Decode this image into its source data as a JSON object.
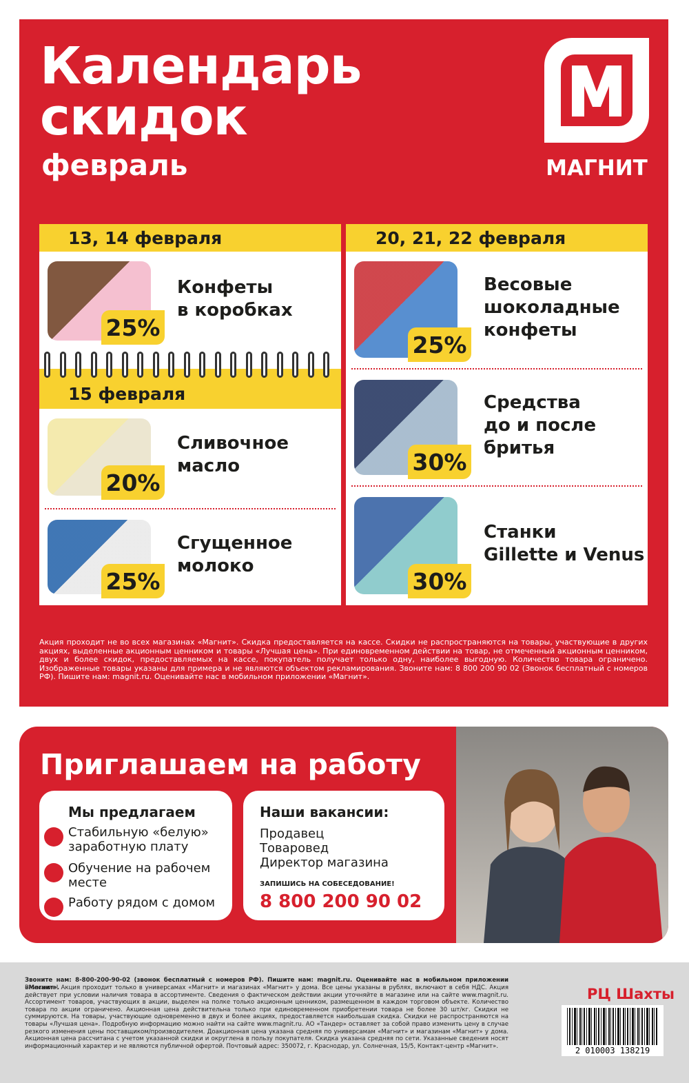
{
  "header": {
    "title_lines": [
      "Календарь",
      "скидок"
    ],
    "subtitle": "февраль",
    "brand": "МАГНИТ"
  },
  "calendar": {
    "left": [
      {
        "date": "13, 14 февраля",
        "items": [
          {
            "name_lines": [
              "Конфеты",
              "в коробках"
            ],
            "discount": "25%"
          }
        ]
      },
      {
        "date": "15 февраля",
        "items": [
          {
            "name_lines": [
              "Сливочное",
              "масло"
            ],
            "discount": "20%"
          },
          {
            "name_lines": [
              "Сгущенное",
              "молоко"
            ],
            "discount": "25%"
          }
        ]
      }
    ],
    "right": [
      {
        "date": "20, 21, 22 февраля",
        "items": [
          {
            "name_lines": [
              "Весовые",
              "шоколадные",
              "конфеты"
            ],
            "discount": "25%"
          },
          {
            "name_lines": [
              "Средства",
              "до и после",
              "бритья"
            ],
            "discount": "30%"
          },
          {
            "name_lines": [
              "Станки",
              "Gillette и Venus"
            ],
            "discount": "30%"
          }
        ]
      }
    ]
  },
  "disclaimer": "Акция проходит не во всех магазинах «Магнит». Скидка предоставляется на кассе.  Скидки не распространяются на товары, участвующие в других акциях, выделенные акционным ценником и товары «Лучшая цена». При единовременном действии на товар, не отмеченный акционным ценником, двух и более скидок, предоставляемых на кассе, покупатель получает только одну, наиболее выгодную. Количество товара ограничено. Изображенные товары указаны для примера и не являются объектом рекламирования. Звоните нам: 8 800 200 90 02 (Звонок бесплатный с номеров РФ). Пишите нам: magnit.ru. Оценивайте нас в мобильном приложении «Магнит».",
  "jobs": {
    "title": "Приглашаем на работу",
    "offer_heading": "Мы предлагаем",
    "offers": [
      [
        "Стабильную «белую»",
        "заработную плату"
      ],
      [
        "Обучение на рабочем",
        "месте"
      ],
      [
        "Работу рядом с домом"
      ]
    ],
    "vacancies_heading": "Наши вакансии:",
    "vacancies": [
      "Продавец",
      "Товаровед",
      "Директор магазина"
    ],
    "cta": "ЗАПИШИСЬ НА СОБЕСЕДОВАНИЕ!",
    "phone": "8 800 200 90 02"
  },
  "footer": {
    "contact": "Звоните нам: 8-800-200-90-02 (звонок бесплатный с номеров РФ). Пишите нам: magnit.ru. Оценивайте нас в мобильном приложении «Магнит».",
    "legal": "Внимание! Акция проходит только в универсамах «Магнит» и магазинах «Магнит» у дома. Все цены указаны в рублях, включают в себя НДС. Акция действует при условии наличия товара в ассортименте. Сведения о фактическом действии акции уточняйте в магазине или на сайте www.magnit.ru. Ассортимент товаров, участвующих в акции, выделен на полке только акционным ценником, размещенном в каждом торговом объекте. Количество товара по акции ограничено. Акционная цена действительна только при единовременном приобретении товара не более 30 шт/кг. Скидки не суммируются. На товары, участвующие одновременно в двух и более акциях, предоставляется наибольшая скидка. Скидки не распространяются на товары «Лучшая цена». Подробную информацию можно найти на сайте www.magnit.ru. АО «Тандер» оставляет за собой право изменить цену в случае резкого изменения цены поставщиком/производителем. Доакционная цена указана средняя по универсамам «Магнит» и магазинам «Магнит» у дома. Акционная цена рассчитана с учетом указанной скидки и округлена в пользу покупателя. Скидка указана средняя по сети. Указанные сведения носят информационный характер и не являются публичной офертой. Почтовый адрес: 350072, г. Краснодар, ул. Солнечная, 15/5, Контакт-центр «Магнит».",
    "region": "РЦ Шахты",
    "barcode": "2 010003 138219"
  }
}
